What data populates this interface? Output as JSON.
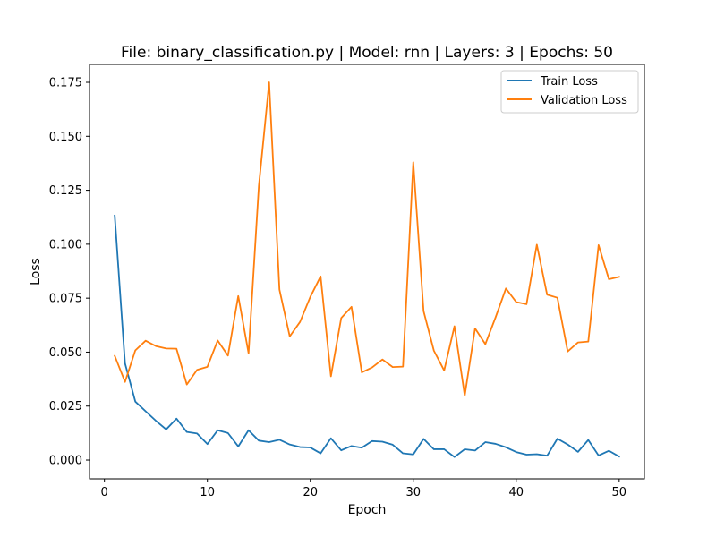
{
  "chart_data": {
    "type": "line",
    "title": "File: binary_classification.py | Model: rnn | Layers: 3 | Epochs: 50",
    "xlabel": "Epoch",
    "ylabel": "Loss",
    "xlim": [
      -1.45,
      52.45
    ],
    "ylim": [
      -0.0087,
      0.1833
    ],
    "xticks": [
      0,
      10,
      20,
      30,
      40,
      50
    ],
    "xtick_labels": [
      "0",
      "10",
      "20",
      "30",
      "40",
      "50"
    ],
    "yticks": [
      0.0,
      0.025,
      0.05,
      0.075,
      0.1,
      0.125,
      0.15,
      0.175
    ],
    "ytick_labels": [
      "0.000",
      "0.025",
      "0.050",
      "0.075",
      "0.100",
      "0.125",
      "0.150",
      "0.175"
    ],
    "grid": false,
    "legend_position": "top-right",
    "x": [
      1,
      2,
      3,
      4,
      5,
      6,
      7,
      8,
      9,
      10,
      11,
      12,
      13,
      14,
      15,
      16,
      17,
      18,
      19,
      20,
      21,
      22,
      23,
      24,
      25,
      26,
      27,
      28,
      29,
      30,
      31,
      32,
      33,
      34,
      35,
      36,
      37,
      38,
      39,
      40,
      41,
      42,
      43,
      44,
      45,
      46,
      47,
      48,
      49,
      50
    ],
    "series": [
      {
        "name": "Train Loss",
        "color": "#1f77b4",
        "values": [
          0.1133,
          0.0448,
          0.0271,
          0.0226,
          0.0182,
          0.0142,
          0.0192,
          0.013,
          0.0123,
          0.0074,
          0.0138,
          0.0125,
          0.0063,
          0.0138,
          0.009,
          0.0083,
          0.0094,
          0.0072,
          0.006,
          0.0058,
          0.0031,
          0.0101,
          0.0045,
          0.0065,
          0.0057,
          0.0088,
          0.0085,
          0.0071,
          0.0031,
          0.0026,
          0.0098,
          0.005,
          0.005,
          0.0014,
          0.005,
          0.0044,
          0.0083,
          0.0075,
          0.0059,
          0.0037,
          0.0025,
          0.0027,
          0.002,
          0.0099,
          0.0072,
          0.0038,
          0.0093,
          0.0021,
          0.0043,
          0.0016
        ]
      },
      {
        "name": "Validation Loss",
        "color": "#ff7f0e",
        "values": [
          0.0483,
          0.0362,
          0.0508,
          0.0553,
          0.0528,
          0.0517,
          0.0516,
          0.035,
          0.0418,
          0.0432,
          0.0554,
          0.0484,
          0.076,
          0.0495,
          0.127,
          0.175,
          0.079,
          0.0573,
          0.064,
          0.0756,
          0.0851,
          0.0388,
          0.0658,
          0.071,
          0.0406,
          0.0429,
          0.0466,
          0.0431,
          0.0433,
          0.138,
          0.069,
          0.0507,
          0.0415,
          0.062,
          0.0298,
          0.061,
          0.0537,
          0.0662,
          0.0795,
          0.0732,
          0.0722,
          0.0998,
          0.0766,
          0.0752,
          0.0503,
          0.0545,
          0.0549,
          0.0996,
          0.0838,
          0.0849
        ]
      }
    ]
  }
}
